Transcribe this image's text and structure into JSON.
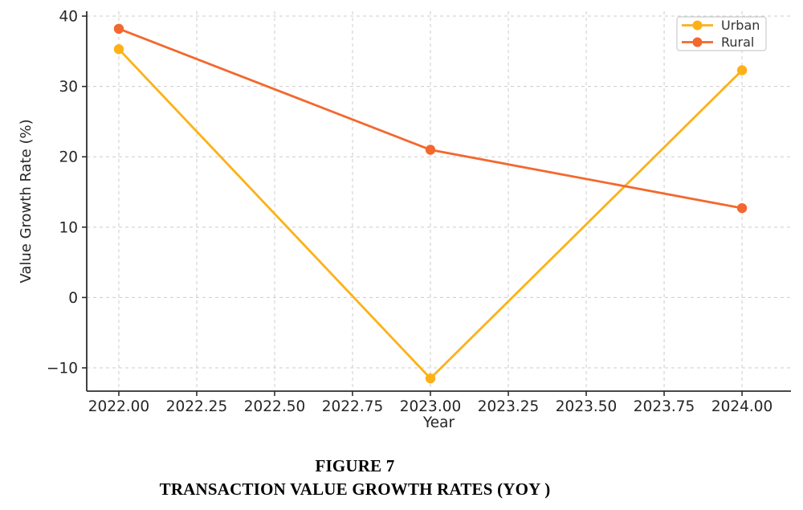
{
  "caption": {
    "line1": "FIGURE 7",
    "line2": "TRANSACTION VALUE GROWTH RATES (YOY )"
  },
  "chart_data": {
    "type": "line",
    "title": "",
    "xlabel": "Year",
    "ylabel": "Value Growth Rate (%)",
    "x": [
      2022,
      2023,
      2024
    ],
    "series": [
      {
        "name": "Urban",
        "color": "#FDB117",
        "values": [
          35.3,
          -11.5,
          32.3
        ]
      },
      {
        "name": "Rural",
        "color": "#F3682E",
        "values": [
          38.2,
          21.0,
          12.7
        ]
      }
    ],
    "xticks": {
      "values": [
        2022.0,
        2022.25,
        2022.5,
        2022.75,
        2023.0,
        2023.25,
        2023.5,
        2023.75,
        2024.0
      ],
      "labels": [
        "2022.00",
        "2022.25",
        "2022.50",
        "2022.75",
        "2023.00",
        "2023.25",
        "2023.50",
        "2023.75",
        "2024.00"
      ]
    },
    "yticks": {
      "values": [
        -10,
        0,
        10,
        20,
        30,
        40
      ],
      "labels": [
        "−10",
        "0",
        "10",
        "20",
        "30",
        "40"
      ]
    },
    "xlim": [
      2021.897,
      2024.157
    ],
    "ylim": [
      -13.31,
      40.69
    ],
    "grid": {
      "show": true,
      "style": "dashed",
      "color": "#cccccc"
    },
    "axis_color": "#2e2e2e",
    "tick_label_color": "#262626",
    "marker": "circle",
    "legend": {
      "position": "top-right",
      "items": [
        "Urban",
        "Rural"
      ],
      "border_color": "#cccccc",
      "background": "#ffffff",
      "text_color": "#333333"
    }
  }
}
